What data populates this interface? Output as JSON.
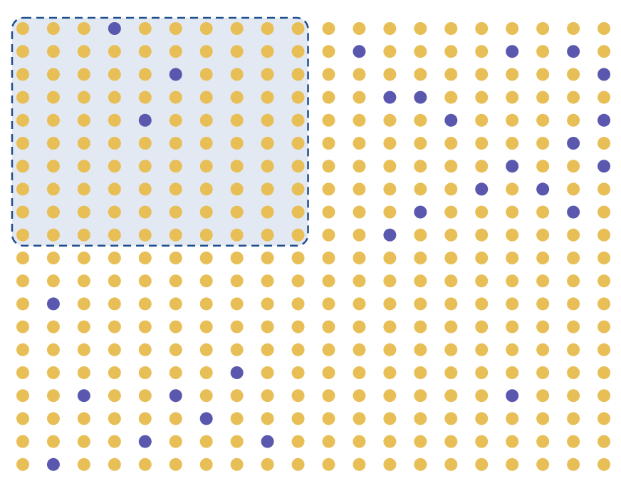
{
  "grid": {
    "rows": 20,
    "cols": 20,
    "highlight": {
      "row_start": 0,
      "row_end": 9,
      "col_start": 0,
      "col_end": 9
    },
    "highlighted_cells": [
      [
        0,
        3
      ],
      [
        1,
        11
      ],
      [
        1,
        16
      ],
      [
        1,
        18
      ],
      [
        2,
        5
      ],
      [
        2,
        19
      ],
      [
        3,
        12
      ],
      [
        3,
        13
      ],
      [
        4,
        4
      ],
      [
        4,
        14
      ],
      [
        4,
        19
      ],
      [
        5,
        18
      ],
      [
        6,
        16
      ],
      [
        6,
        19
      ],
      [
        7,
        15
      ],
      [
        7,
        17
      ],
      [
        8,
        13
      ],
      [
        8,
        18
      ],
      [
        9,
        12
      ],
      [
        12,
        1
      ],
      [
        15,
        7
      ],
      [
        16,
        2
      ],
      [
        16,
        5
      ],
      [
        16,
        16
      ],
      [
        17,
        6
      ],
      [
        18,
        4
      ],
      [
        18,
        8
      ],
      [
        19,
        1
      ]
    ]
  },
  "colors": {
    "default_dot": "#E8BF57",
    "highlighted_dot": "#5A58AE",
    "region_fill": "#E3E9F2",
    "region_border": "#1F4E8C"
  }
}
